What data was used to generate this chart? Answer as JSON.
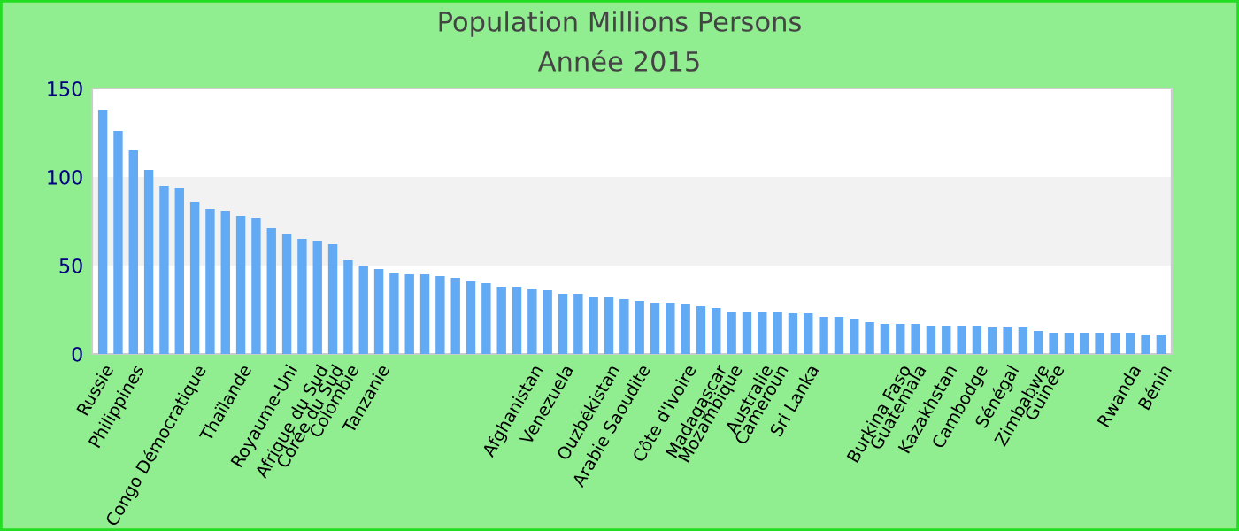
{
  "chart_data": {
    "type": "bar",
    "title": "Population Millions Persons",
    "subtitle": "Année 2015",
    "categories": [
      "Russie",
      null,
      "Philippines",
      null,
      null,
      null,
      "Congo Démocratique",
      null,
      null,
      "Thaïlande",
      null,
      null,
      "Royaume-Uni",
      null,
      "Afrique du Sud",
      "Corée du Sud",
      "Colombie",
      null,
      "Tanzanie",
      null,
      null,
      null,
      null,
      null,
      null,
      null,
      null,
      null,
      "Afghanistan",
      null,
      "Venezuela",
      null,
      null,
      "Ouzbékistan",
      null,
      "Arabie Saoudite",
      null,
      null,
      "Côte d'Ivoire",
      null,
      "Madagascar",
      "Mozambique",
      null,
      "Australie",
      "Cameroun",
      null,
      "Sri Lanka",
      null,
      null,
      null,
      null,
      null,
      "Burkina Faso",
      "Guatemala",
      null,
      "Kazakhstan",
      null,
      "Cambodge",
      null,
      "Sénégal",
      null,
      "Zimbabwe",
      "Guinée",
      null,
      null,
      null,
      null,
      "Rwanda",
      null,
      "Bénin"
    ],
    "values": [
      138,
      126,
      115,
      104,
      95,
      94,
      86,
      82,
      81,
      78,
      77,
      71,
      68,
      65,
      64,
      62,
      53,
      50,
      48,
      46,
      45,
      45,
      44,
      43,
      41,
      40,
      38,
      38,
      37,
      36,
      34,
      34,
      32,
      32,
      31,
      30,
      29,
      29,
      28,
      27,
      26,
      24,
      24,
      24,
      24,
      23,
      23,
      21,
      21,
      20,
      18,
      17,
      17,
      17,
      16,
      16,
      16,
      16,
      15,
      15,
      15,
      13,
      12,
      12,
      12,
      12,
      12,
      12,
      11,
      11
    ],
    "color": "#63aaf4",
    "ylim": [
      0,
      150
    ],
    "yticks": [
      0,
      50,
      100,
      150
    ],
    "bands": [
      {
        "axis": "y",
        "from": 50,
        "to": 100,
        "color": "#f2f2f2"
      }
    ],
    "grid": false
  }
}
